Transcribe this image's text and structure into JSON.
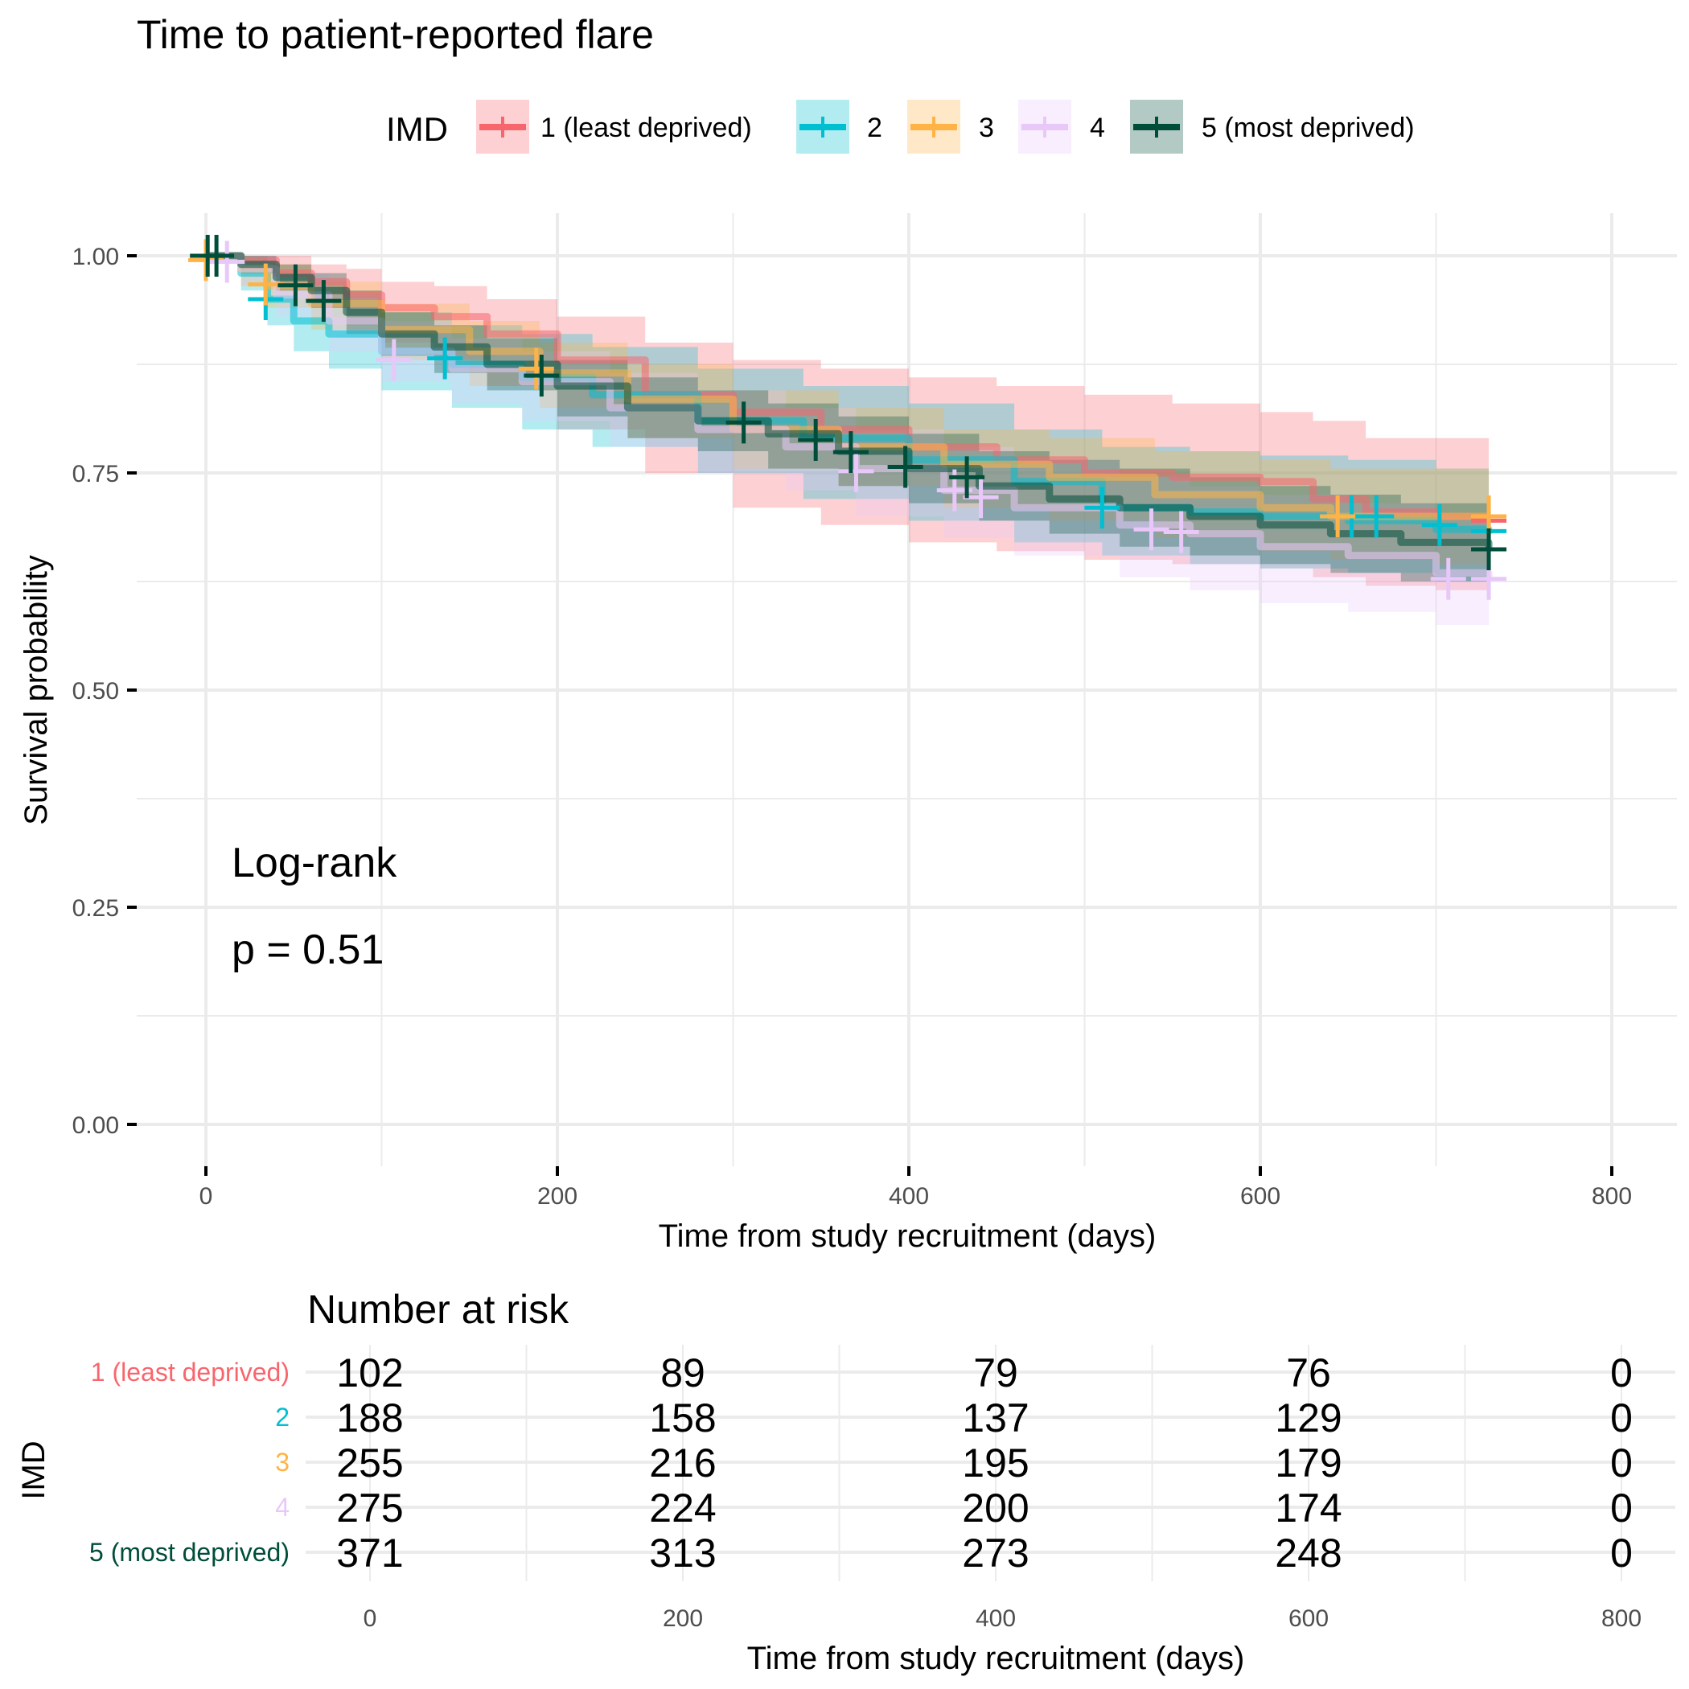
{
  "chart_data": {
    "type": "line",
    "subtype": "kaplan-meier",
    "title": "Time to patient-reported flare",
    "xlabel": "Time from study recruitment (days)",
    "ylabel": "Survival probability",
    "xlim": [
      0,
      800
    ],
    "ylim": [
      0,
      1
    ],
    "x_ticks": [
      "0",
      "200",
      "400",
      "600",
      "800"
    ],
    "y_ticks": [
      "0.00",
      "0.25",
      "0.50",
      "0.75",
      "1.00"
    ],
    "grid": true,
    "legend": {
      "title": "IMD",
      "placement": "top",
      "entries": [
        {
          "label": "1 (least deprived)",
          "color": "#F8666D"
        },
        {
          "label": "2",
          "color": "#00BFD1"
        },
        {
          "label": "3",
          "color": "#FFB347"
        },
        {
          "label": "4",
          "color": "#E8C8F8"
        },
        {
          "label": "5 (most deprived)",
          "color": "#004D3A"
        }
      ]
    },
    "annotation": {
      "line1": "Log-rank",
      "line2": "p = 0.51"
    },
    "series": [
      {
        "name": "1 (least deprived)",
        "color": "#F8666D",
        "x": [
          0,
          20,
          40,
          60,
          80,
          100,
          130,
          160,
          200,
          250,
          300,
          350,
          400,
          450,
          500,
          550,
          600,
          630,
          660,
          700,
          730
        ],
        "y": [
          1.0,
          0.995,
          0.98,
          0.97,
          0.955,
          0.94,
          0.93,
          0.91,
          0.88,
          0.84,
          0.82,
          0.8,
          0.78,
          0.765,
          0.75,
          0.745,
          0.74,
          0.72,
          0.705,
          0.7,
          0.7
        ],
        "lower": [
          1.0,
          0.98,
          0.96,
          0.94,
          0.92,
          0.9,
          0.88,
          0.85,
          0.8,
          0.75,
          0.71,
          0.69,
          0.67,
          0.66,
          0.65,
          0.645,
          0.64,
          0.63,
          0.62,
          0.615,
          0.615
        ],
        "upper": [
          1.0,
          1.0,
          1.0,
          0.99,
          0.985,
          0.97,
          0.965,
          0.95,
          0.93,
          0.9,
          0.88,
          0.87,
          0.86,
          0.85,
          0.84,
          0.83,
          0.82,
          0.81,
          0.79,
          0.79,
          0.79
        ],
        "censor_x": [
          730
        ],
        "censor_y": [
          0.695
        ]
      },
      {
        "name": "2",
        "color": "#00BFD1",
        "x": [
          0,
          20,
          35,
          50,
          70,
          100,
          140,
          180,
          220,
          280,
          340,
          400,
          460,
          510,
          560,
          600,
          650,
          700,
          730
        ],
        "y": [
          1.0,
          0.98,
          0.95,
          0.925,
          0.91,
          0.89,
          0.875,
          0.86,
          0.84,
          0.81,
          0.79,
          0.765,
          0.74,
          0.71,
          0.705,
          0.7,
          0.695,
          0.685,
          0.68
        ],
        "lower": [
          1.0,
          0.96,
          0.92,
          0.89,
          0.87,
          0.845,
          0.825,
          0.8,
          0.78,
          0.75,
          0.72,
          0.695,
          0.67,
          0.655,
          0.645,
          0.64,
          0.635,
          0.625,
          0.62
        ],
        "upper": [
          1.0,
          1.0,
          0.98,
          0.96,
          0.95,
          0.935,
          0.92,
          0.91,
          0.895,
          0.87,
          0.85,
          0.83,
          0.8,
          0.78,
          0.775,
          0.77,
          0.765,
          0.755,
          0.75
        ],
        "censor_x": [
          34,
          136,
          510,
          652,
          666,
          702,
          730
        ],
        "censor_y": [
          0.95,
          0.882,
          0.71,
          0.7,
          0.7,
          0.69,
          0.683
        ]
      },
      {
        "name": "3",
        "color": "#FFB347",
        "x": [
          0,
          20,
          35,
          60,
          100,
          150,
          190,
          240,
          300,
          360,
          420,
          480,
          540,
          600,
          640,
          700,
          730
        ],
        "y": [
          1.0,
          0.985,
          0.965,
          0.945,
          0.915,
          0.89,
          0.865,
          0.835,
          0.8,
          0.78,
          0.76,
          0.745,
          0.725,
          0.71,
          0.7,
          0.7,
          0.7
        ],
        "lower": [
          1.0,
          0.965,
          0.94,
          0.915,
          0.88,
          0.85,
          0.825,
          0.79,
          0.755,
          0.735,
          0.71,
          0.695,
          0.675,
          0.66,
          0.65,
          0.645,
          0.645
        ],
        "upper": [
          1.0,
          1.0,
          0.99,
          0.97,
          0.945,
          0.925,
          0.9,
          0.875,
          0.845,
          0.825,
          0.8,
          0.79,
          0.775,
          0.765,
          0.755,
          0.755,
          0.755
        ],
        "censor_x": [
          0,
          34,
          188,
          644,
          730
        ],
        "censor_y": [
          0.995,
          0.967,
          0.87,
          0.7,
          0.7
        ]
      },
      {
        "name": "4",
        "color": "#E8C8F8",
        "x": [
          0,
          20,
          40,
          70,
          100,
          140,
          180,
          230,
          280,
          330,
          370,
          420,
          460,
          520,
          560,
          600,
          650,
          700,
          730
        ],
        "y": [
          1.0,
          0.985,
          0.955,
          0.925,
          0.89,
          0.87,
          0.855,
          0.825,
          0.8,
          0.78,
          0.755,
          0.73,
          0.71,
          0.69,
          0.68,
          0.665,
          0.655,
          0.635,
          0.63
        ],
        "lower": [
          1.0,
          0.965,
          0.93,
          0.89,
          0.855,
          0.83,
          0.81,
          0.78,
          0.75,
          0.73,
          0.7,
          0.675,
          0.655,
          0.63,
          0.615,
          0.6,
          0.59,
          0.575,
          0.57
        ],
        "upper": [
          1.0,
          1.0,
          0.98,
          0.955,
          0.925,
          0.905,
          0.89,
          0.865,
          0.845,
          0.825,
          0.8,
          0.78,
          0.765,
          0.745,
          0.735,
          0.725,
          0.715,
          0.7,
          0.695
        ],
        "censor_x": [
          12,
          107,
          370,
          426,
          441,
          538,
          555,
          707,
          730
        ],
        "censor_y": [
          0.993,
          0.88,
          0.752,
          0.73,
          0.722,
          0.685,
          0.682,
          0.628,
          0.628
        ]
      },
      {
        "name": "5 (most deprived)",
        "color": "#004D3A",
        "x": [
          0,
          20,
          40,
          60,
          80,
          100,
          130,
          160,
          200,
          240,
          280,
          320,
          360,
          400,
          440,
          480,
          520,
          560,
          600,
          640,
          680,
          730
        ],
        "y": [
          1.0,
          0.99,
          0.975,
          0.96,
          0.935,
          0.91,
          0.895,
          0.875,
          0.85,
          0.825,
          0.81,
          0.795,
          0.775,
          0.755,
          0.735,
          0.72,
          0.71,
          0.7,
          0.69,
          0.68,
          0.67,
          0.66
        ],
        "lower": [
          1.0,
          0.98,
          0.96,
          0.94,
          0.91,
          0.885,
          0.865,
          0.845,
          0.815,
          0.79,
          0.775,
          0.755,
          0.735,
          0.715,
          0.695,
          0.68,
          0.665,
          0.655,
          0.645,
          0.635,
          0.625,
          0.615
        ],
        "upper": [
          1.0,
          1.0,
          0.99,
          0.98,
          0.96,
          0.935,
          0.92,
          0.905,
          0.88,
          0.86,
          0.845,
          0.83,
          0.815,
          0.795,
          0.775,
          0.765,
          0.755,
          0.745,
          0.735,
          0.725,
          0.715,
          0.71
        ],
        "censor_x": [
          1,
          6,
          51,
          67,
          191,
          306,
          347,
          367,
          398,
          433,
          730
        ],
        "censor_y": [
          1.0,
          1.0,
          0.966,
          0.948,
          0.862,
          0.808,
          0.788,
          0.774,
          0.757,
          0.745,
          0.662
        ]
      }
    ],
    "risk_table": {
      "title": "Number at risk",
      "ylabel": "IMD",
      "xlabel": "Time from study recruitment (days)",
      "times": [
        0,
        200,
        400,
        600,
        800
      ],
      "x_ticks": [
        "0",
        "200",
        "400",
        "600",
        "800"
      ],
      "rows": [
        {
          "label": "1 (least deprived)",
          "color": "#F8666D",
          "values": [
            "102",
            "89",
            "79",
            "76",
            "0"
          ]
        },
        {
          "label": "2",
          "color": "#00BFD1",
          "values": [
            "188",
            "158",
            "137",
            "129",
            "0"
          ]
        },
        {
          "label": "3",
          "color": "#FFB347",
          "values": [
            "255",
            "216",
            "195",
            "179",
            "0"
          ]
        },
        {
          "label": "4",
          "color": "#E8C8F8",
          "values": [
            "275",
            "224",
            "200",
            "174",
            "0"
          ]
        },
        {
          "label": "5 (most deprived)",
          "color": "#004D3A",
          "values": [
            "371",
            "313",
            "273",
            "248",
            "0"
          ]
        }
      ]
    }
  }
}
